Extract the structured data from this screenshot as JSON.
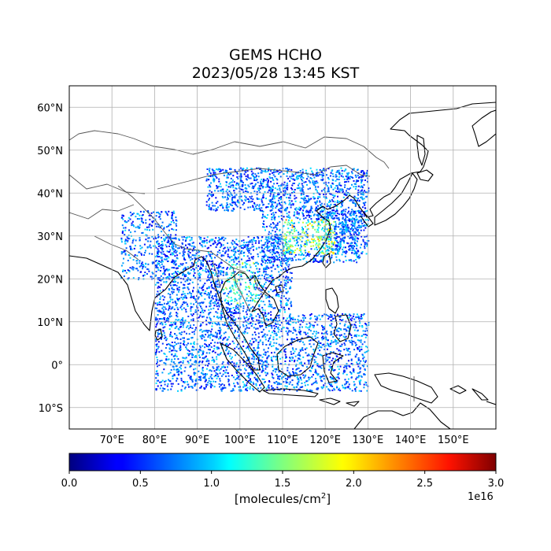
{
  "title": {
    "line1": "GEMS HCHO",
    "line2": "2023/05/28 13:45 KST"
  },
  "map": {
    "lon_range": [
      60,
      160
    ],
    "lat_range": [
      -15,
      65
    ],
    "lon_ticks": [
      "70°E",
      "80°E",
      "90°E",
      "100°E",
      "110°E",
      "120°E",
      "130°E",
      "140°E",
      "150°E"
    ],
    "lat_ticks": [
      "60°N",
      "50°N",
      "40°N",
      "30°N",
      "20°N",
      "10°N",
      "0°",
      "10°S"
    ],
    "gridlines": true
  },
  "colorbar": {
    "colormap": "jet",
    "ticks": [
      "0.0",
      "0.5",
      "1.0",
      "1.5",
      "2.0",
      "2.5",
      "3.0"
    ],
    "range": [
      0.0,
      3.0
    ],
    "exponent": "1e16",
    "unit_prefix": "[molecules/cm",
    "unit_power": "2",
    "unit_suffix": "]"
  }
}
